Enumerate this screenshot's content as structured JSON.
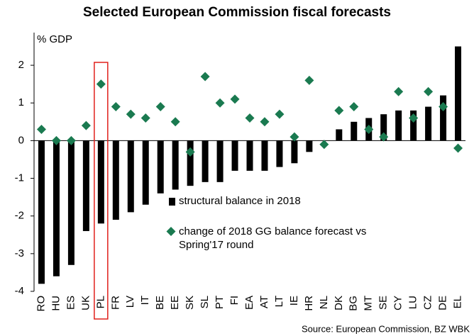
{
  "chart_data": {
    "type": "bar",
    "title": "Selected European Commission fiscal forecasts",
    "y_label": "% GDP",
    "source": "Source: European Commission, BZ WBK",
    "categories": [
      "RO",
      "HU",
      "ES",
      "UK",
      "PL",
      "FR",
      "LV",
      "IT",
      "BE",
      "EE",
      "SK",
      "SL",
      "PT",
      "FI",
      "EA",
      "AT",
      "LT",
      "IE",
      "HR",
      "NL",
      "DK",
      "BG",
      "MT",
      "SE",
      "CY",
      "LU",
      "CZ",
      "DE",
      "EL"
    ],
    "series": [
      {
        "name": "structural balance in 2018",
        "type": "bar",
        "color": "#000000",
        "values": [
          -3.8,
          -3.6,
          -3.3,
          -2.4,
          -2.2,
          -2.1,
          -1.9,
          -1.7,
          -1.4,
          -1.3,
          -1.2,
          -1.1,
          -1.1,
          -0.8,
          -0.8,
          -0.8,
          -0.7,
          -0.6,
          -0.3,
          0,
          0.3,
          0.5,
          0.6,
          0.7,
          0.8,
          0.8,
          0.9,
          1.2,
          2.5
        ]
      },
      {
        "name": "change of 2018 GG balance forecast vs Spring'17 round",
        "type": "scatter",
        "color": "#1a7a50",
        "values": [
          0.3,
          0,
          0,
          0.4,
          1.5,
          0.9,
          0.7,
          0.6,
          0.9,
          0.5,
          -0.3,
          1.7,
          1.0,
          1.1,
          0.6,
          0.5,
          0.7,
          0.1,
          1.6,
          -0.1,
          0.8,
          0.9,
          0.3,
          0.1,
          1.3,
          0.6,
          1.3,
          0.9,
          -0.2
        ]
      }
    ],
    "ylim": [
      -4,
      2.5
    ],
    "yticks": [
      -4,
      -3,
      -2,
      -1,
      0,
      1,
      2
    ],
    "highlight": {
      "category": "PL",
      "color": "#e0201b"
    }
  }
}
